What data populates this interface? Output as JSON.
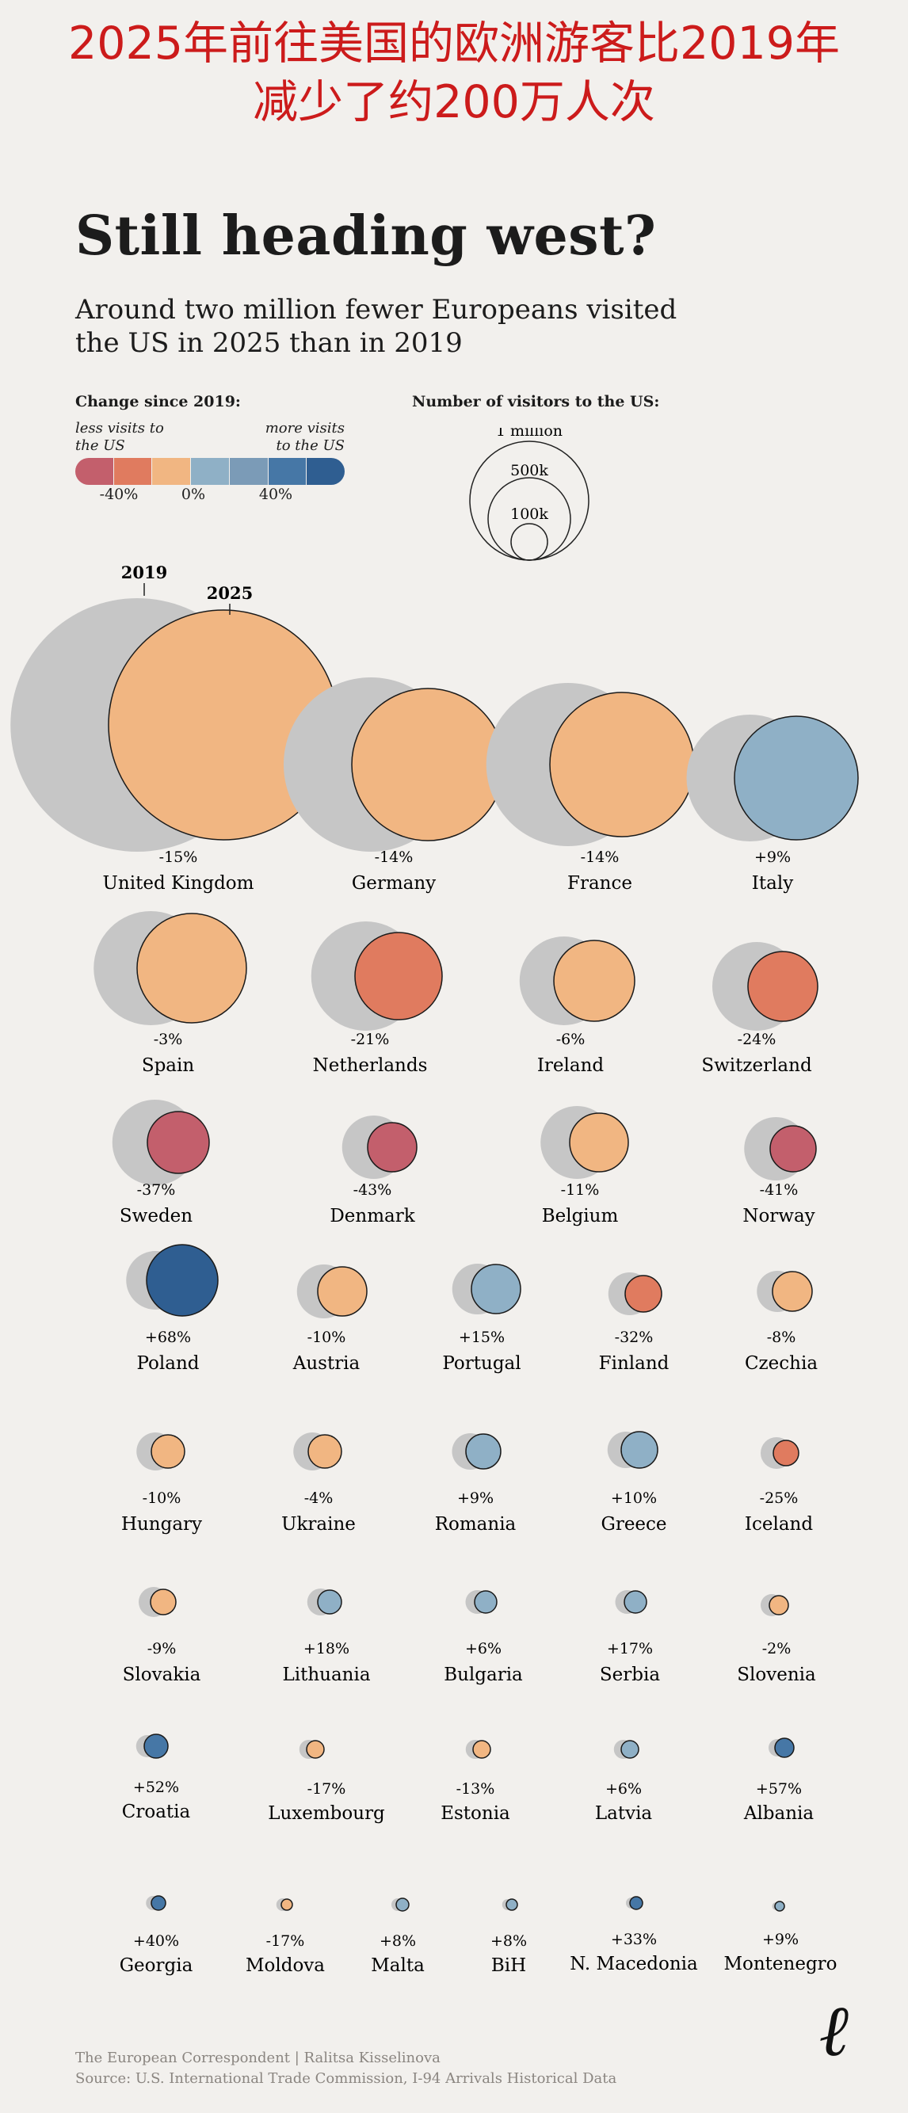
{
  "banner": {
    "line1": "2025年前往美国的欧洲游客比2019年",
    "line2": "减少了约200万人次"
  },
  "title": "Still heading west?",
  "subtitle": "Around two million fewer Europeans visited the US in 2025 than in 2019",
  "legend": {
    "change_title": "Change since 2019:",
    "less_label": "less visits to the US",
    "more_label": "more visits to the US",
    "ticks": [
      "-40%",
      "0%",
      "40%"
    ],
    "scale_colors": [
      "#c35f6c",
      "#e07b5f",
      "#f1b682",
      "#8fb0c6",
      "#7b9bb7",
      "#4677a6",
      "#2f5e91"
    ],
    "size_title": "Number of visitors to the US:",
    "size_labels": [
      "1 million",
      "500k",
      "100k"
    ],
    "year_labels": [
      "2019",
      "2025"
    ]
  },
  "colors": {
    "gray": "#c6c6c6",
    "bins": {
      "neg_strong": "#c35f6c",
      "neg_mid": "#e07b5f",
      "neg_small": "#f1b682",
      "pos_small": "#8fb0c6",
      "pos_large": "#4677a6",
      "pos_strong": "#2f5e91"
    }
  },
  "chart_data": {
    "type": "bubble",
    "title": "Still heading west?",
    "unit": "visitors to the US",
    "countries": [
      {
        "name": "United Kingdom",
        "change": -15,
        "label": "-15%"
      },
      {
        "name": "Germany",
        "change": -14,
        "label": "-14%"
      },
      {
        "name": "France",
        "change": -14,
        "label": "-14%"
      },
      {
        "name": "Italy",
        "change": 9,
        "label": "+9%"
      },
      {
        "name": "Spain",
        "change": -3,
        "label": "-3%"
      },
      {
        "name": "Netherlands",
        "change": -21,
        "label": "-21%"
      },
      {
        "name": "Ireland",
        "change": -6,
        "label": "-6%"
      },
      {
        "name": "Switzerland",
        "change": -24,
        "label": "-24%"
      },
      {
        "name": "Sweden",
        "change": -37,
        "label": "-37%"
      },
      {
        "name": "Denmark",
        "change": -43,
        "label": "-43%"
      },
      {
        "name": "Belgium",
        "change": -11,
        "label": "-11%"
      },
      {
        "name": "Norway",
        "change": -41,
        "label": "-41%"
      },
      {
        "name": "Poland",
        "change": 68,
        "label": "+68%"
      },
      {
        "name": "Austria",
        "change": -10,
        "label": "-10%"
      },
      {
        "name": "Portugal",
        "change": 15,
        "label": "+15%"
      },
      {
        "name": "Finland",
        "change": -32,
        "label": "-32%"
      },
      {
        "name": "Czechia",
        "change": -8,
        "label": "-8%"
      },
      {
        "name": "Hungary",
        "change": -10,
        "label": "-10%"
      },
      {
        "name": "Ukraine",
        "change": -4,
        "label": "-4%"
      },
      {
        "name": "Romania",
        "change": 9,
        "label": "+9%"
      },
      {
        "name": "Greece",
        "change": 10,
        "label": "+10%"
      },
      {
        "name": "Iceland",
        "change": -25,
        "label": "-25%"
      },
      {
        "name": "Slovakia",
        "change": -9,
        "label": "-9%"
      },
      {
        "name": "Lithuania",
        "change": 18,
        "label": "+18%"
      },
      {
        "name": "Bulgaria",
        "change": 6,
        "label": "+6%"
      },
      {
        "name": "Serbia",
        "change": 17,
        "label": "+17%"
      },
      {
        "name": "Slovenia",
        "change": -2,
        "label": "-2%"
      },
      {
        "name": "Croatia",
        "change": 52,
        "label": "+52%"
      },
      {
        "name": "Luxembourg",
        "change": -17,
        "label": "-17%"
      },
      {
        "name": "Estonia",
        "change": -13,
        "label": "-13%"
      },
      {
        "name": "Latvia",
        "change": 6,
        "label": "+6%"
      },
      {
        "name": "Albania",
        "change": 57,
        "label": "+57%"
      },
      {
        "name": "Georgia",
        "change": 40,
        "label": "+40%"
      },
      {
        "name": "Moldova",
        "change": -17,
        "label": "-17%"
      },
      {
        "name": "Malta",
        "change": 8,
        "label": "+8%"
      },
      {
        "name": "BiH",
        "change": 8,
        "label": "+8%"
      },
      {
        "name": "N. Macedonia",
        "change": 33,
        "label": "+33%"
      },
      {
        "name": "Montenegro",
        "change": 9,
        "label": "+9%"
      }
    ]
  },
  "footer": {
    "credit": "The European Correspondent | Ralitsa Kisselinova",
    "source": "Source:  U.S. International Trade Commission, I-94 Arrivals Historical Data"
  },
  "logo_text": "ℓ"
}
